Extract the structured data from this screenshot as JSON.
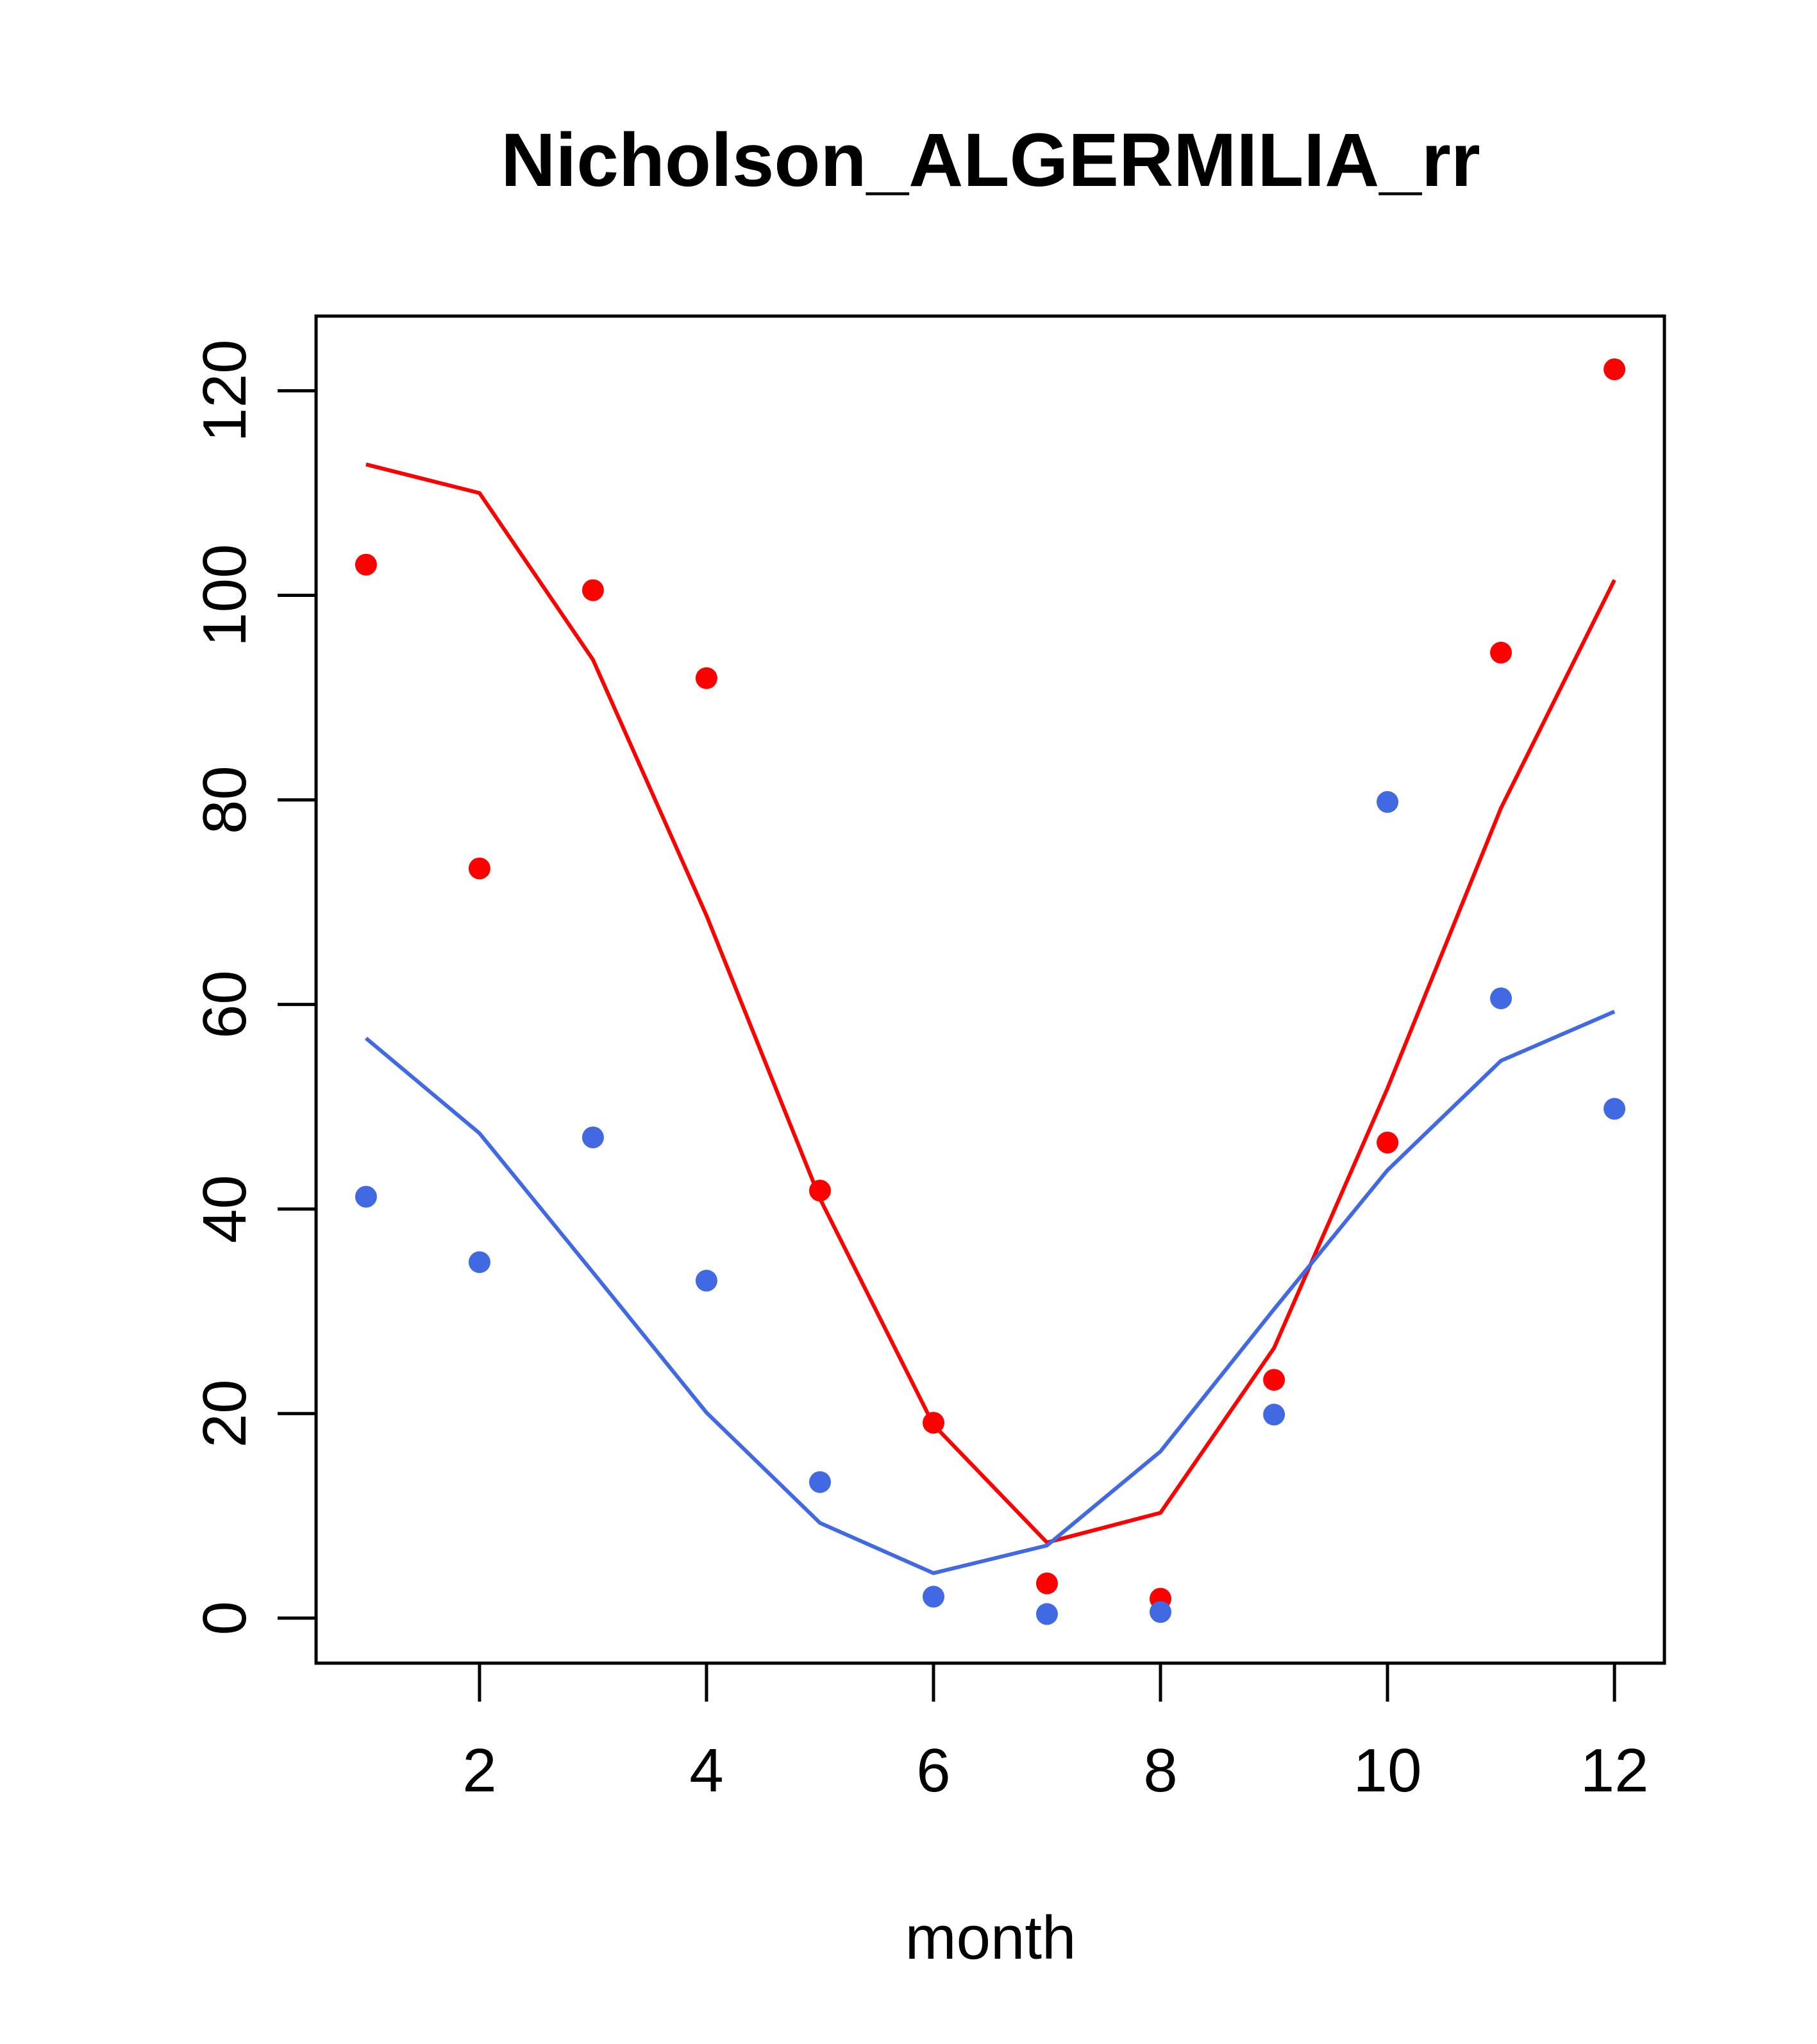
{
  "chart_data": {
    "type": "scatter",
    "title": "Nicholson_ALGERMILIA_rr",
    "xlabel": "month",
    "ylabel": "",
    "xlim": [
      0.56,
      12.44
    ],
    "ylim": [
      -4.4,
      127.3
    ],
    "x_ticks": [
      2,
      4,
      6,
      8,
      10,
      12
    ],
    "y_ticks": [
      0,
      20,
      40,
      60,
      80,
      100,
      120
    ],
    "grid": false,
    "legend": "none",
    "series": [
      {
        "kind": "points",
        "color": "#ff0000",
        "x": [
          1,
          2,
          3,
          4,
          5,
          6,
          7,
          8,
          9,
          10,
          11,
          12
        ],
        "values": [
          103.0,
          73.3,
          100.5,
          91.9,
          41.8,
          19.1,
          3.4,
          1.9,
          23.3,
          46.5,
          94.4,
          122.1
        ]
      },
      {
        "kind": "points",
        "color": "#4169e1",
        "x": [
          1,
          2,
          3,
          4,
          5,
          6,
          7,
          8,
          9,
          10,
          11,
          12
        ],
        "values": [
          41.2,
          34.8,
          47.0,
          33.0,
          13.3,
          2.1,
          0.4,
          0.6,
          19.9,
          79.8,
          60.6,
          49.8
        ]
      },
      {
        "kind": "line",
        "color": "#ff0000",
        "x": [
          1,
          2,
          3,
          4,
          5,
          6,
          7,
          8,
          9,
          10,
          11,
          12
        ],
        "values": [
          112.8,
          110.0,
          93.7,
          68.7,
          41.0,
          18.9,
          7.4,
          10.3,
          26.4,
          51.8,
          79.2,
          101.5
        ]
      },
      {
        "kind": "line",
        "color": "#4169e1",
        "x": [
          1,
          2,
          3,
          4,
          5,
          6,
          7,
          8,
          9,
          10,
          11,
          12
        ],
        "values": [
          56.7,
          47.4,
          33.8,
          20.1,
          9.3,
          4.4,
          7.1,
          16.3,
          30.2,
          43.8,
          54.5,
          59.3
        ]
      }
    ]
  }
}
